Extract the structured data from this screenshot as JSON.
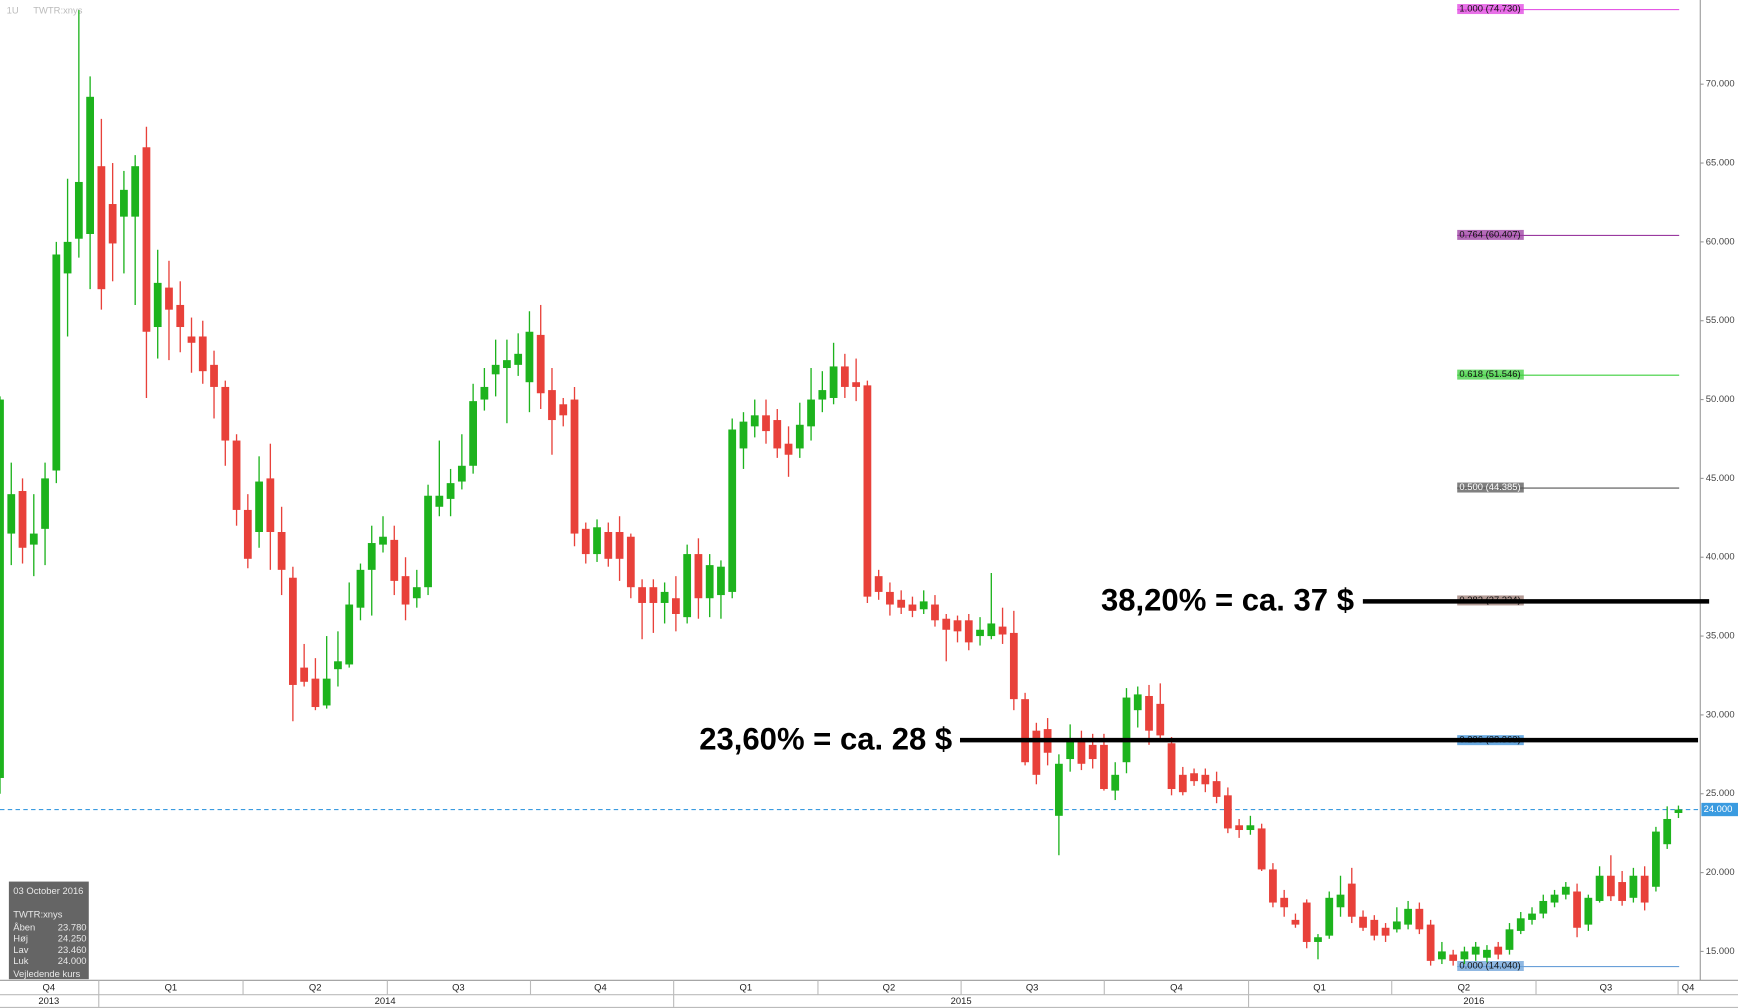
{
  "header": {
    "interval": "1U",
    "symbol": "TWTR:xnys"
  },
  "info_box": {
    "date": "03 October 2016",
    "symbol": "TWTR:xnys",
    "rows": [
      [
        "Åben",
        "23.780"
      ],
      [
        "Høj",
        "24.250"
      ],
      [
        "Lav",
        "23.460"
      ],
      [
        "Luk",
        "24.000"
      ]
    ],
    "note": "Vejledende kurs"
  },
  "chart_data": {
    "type": "candlestick",
    "up_color": "#1db31d",
    "down_color": "#e8413a",
    "open": [
      26,
      41.5,
      44.2,
      40.8,
      41.8,
      45.5,
      58,
      60.2,
      60.5,
      64.8,
      62.4,
      61.6,
      61.6,
      66,
      54.6,
      57.1,
      56,
      54,
      54,
      52.2,
      50.8,
      47.4,
      43,
      41.6,
      45,
      41.6,
      38.7,
      33,
      32.3,
      30.6,
      32.9,
      33.2,
      36.8,
      39.2,
      40.8,
      41.1,
      38.8,
      37.4,
      38.1,
      43.2,
      43.7,
      44.8,
      45.8,
      50,
      51.6,
      52,
      52.2,
      51.1,
      54.1,
      50.6,
      49.7,
      50,
      41.8,
      40.2,
      41.6,
      41.6,
      41.3,
      38.1,
      38.1,
      37.1,
      37.4,
      36.2,
      40.2,
      37.4,
      37.6,
      37.8,
      46.9,
      48.3,
      49,
      48.7,
      47.2,
      46.9,
      48.3,
      50,
      50.1,
      52.1,
      51.1,
      50.9,
      38.8,
      37.8,
      37.3,
      37,
      36.7,
      37,
      36.1,
      36,
      36,
      35,
      35,
      35.6,
      35.2,
      31,
      29,
      29.1,
      23.6,
      27.2,
      28.4,
      28.1,
      28.1,
      25.2,
      27,
      30.3,
      31.2,
      30.7,
      28.2,
      26.2,
      26.3,
      26.2,
      25.8,
      24.9,
      23,
      22.7,
      22.8,
      20.2,
      18.4,
      17,
      18.1,
      15.6,
      16,
      17.8,
      19.3,
      17.2,
      17,
      16.5,
      16.4,
      16.7,
      17.7,
      16.7,
      14.5,
      14.8,
      14.5,
      14.8,
      14.6,
      15.3,
      15.1,
      16.3,
      17,
      17.4,
      18.1,
      18.6,
      18.8,
      16.7,
      18.2,
      19.8,
      19.4,
      18.4,
      19.8,
      19.1,
      21.8,
      23.78
    ],
    "high": [
      50.2,
      46,
      45,
      44,
      46,
      60,
      64,
      74.7,
      70.5,
      67.8,
      65,
      64.5,
      65.5,
      67.3,
      59.5,
      58.8,
      57.5,
      55.2,
      55,
      53.1,
      51.2,
      47.8,
      44,
      46.4,
      47.2,
      43.2,
      39.4,
      34.5,
      33.6,
      35,
      35.3,
      38.4,
      39.6,
      42,
      42.6,
      42,
      40,
      39.2,
      44.6,
      47.4,
      45.6,
      47.8,
      51,
      52,
      53.8,
      53.8,
      54.2,
      55.6,
      56,
      52,
      50.1,
      50.8,
      42.2,
      42.4,
      42.2,
      42.6,
      41.5,
      38.6,
      38.6,
      38.4,
      38.8,
      40.8,
      41.2,
      40.2,
      39.8,
      48.8,
      49.2,
      50,
      50,
      49.4,
      48.3,
      49.8,
      52,
      51.8,
      53.6,
      52.9,
      52.6,
      51.2,
      39.2,
      38.4,
      37.9,
      37.5,
      37.9,
      37.6,
      36.4,
      36.3,
      36.4,
      36.2,
      39,
      36.8,
      36.6,
      31.4,
      29.5,
      29.8,
      27.5,
      29.4,
      29,
      28.8,
      28.8,
      27,
      31.7,
      31.8,
      31.9,
      32,
      28.6,
      26.7,
      26.6,
      26.6,
      26.4,
      25.4,
      23.4,
      23.6,
      23.1,
      20.6,
      18.9,
      17.4,
      18.3,
      16.1,
      18.8,
      19.8,
      20.3,
      17.6,
      17.3,
      16.8,
      17.8,
      18.2,
      18.1,
      17,
      15.6,
      15.1,
      15.3,
      15.6,
      15.4,
      15.6,
      16.8,
      17.5,
      17.8,
      18.6,
      18.9,
      19.4,
      19.3,
      18.6,
      20.4,
      21.1,
      20.1,
      20.3,
      20.4,
      22.9,
      24.2,
      24.25
    ],
    "low": [
      25,
      39.5,
      39.6,
      38.8,
      39.5,
      44.7,
      54,
      59,
      57,
      55.7,
      57.5,
      58,
      56,
      50.1,
      52.6,
      52.5,
      53,
      51.7,
      51,
      48.8,
      45.8,
      42,
      39.3,
      40.6,
      39.2,
      37.6,
      29.6,
      31.8,
      30.3,
      30.4,
      31.8,
      33,
      36,
      36.3,
      40.3,
      37.6,
      36,
      36.8,
      37.6,
      42.6,
      42.6,
      44.3,
      45.3,
      49.3,
      50.2,
      48.5,
      51.5,
      49.2,
      49.4,
      46.5,
      48.3,
      40.7,
      39.6,
      39.7,
      39.4,
      38.5,
      37.4,
      34.8,
      35.2,
      35.8,
      35.3,
      35.8,
      36.1,
      36.2,
      36.1,
      37.4,
      45.6,
      47.6,
      47.2,
      46.3,
      45.1,
      46.3,
      47.4,
      49.2,
      49.7,
      50.1,
      49.9,
      37.1,
      37.3,
      36.3,
      36.4,
      36.2,
      36.4,
      35.6,
      33.4,
      34.6,
      34.1,
      34.4,
      34.8,
      34.5,
      30.3,
      26.8,
      25.6,
      26.8,
      21.1,
      26.4,
      26.5,
      26.6,
      25.2,
      24.6,
      26.3,
      29.2,
      28.1,
      28.3,
      24.9,
      24.9,
      25.5,
      25.1,
      24.4,
      22.5,
      22.2,
      22.4,
      20.1,
      17.8,
      17.2,
      16.5,
      15.2,
      14.5,
      15.8,
      17.2,
      16.8,
      16.3,
      15.7,
      15.6,
      16.2,
      16.4,
      16.1,
      14.1,
      14.2,
      14.1,
      14.2,
      14.4,
      14.3,
      14.5,
      14.8,
      16.1,
      16.7,
      17.1,
      17.8,
      18.3,
      15.9,
      16.3,
      18.1,
      18.2,
      17.9,
      18.1,
      17.6,
      18.8,
      21.5,
      23.46
    ],
    "close": [
      50,
      44,
      40.6,
      41.5,
      45,
      59.2,
      60,
      63.8,
      69.2,
      57,
      59.9,
      63.3,
      64.8,
      54.3,
      57.4,
      55.7,
      54.6,
      53.6,
      51.8,
      50.8,
      47.4,
      43,
      39.9,
      44.8,
      41.6,
      39.2,
      31.9,
      32.1,
      30.5,
      32.3,
      33.4,
      37,
      39.2,
      40.9,
      41.3,
      38.5,
      37,
      38.1,
      43.9,
      43.9,
      44.7,
      45.8,
      49.9,
      50.8,
      52.2,
      52.5,
      52.9,
      54.3,
      50.4,
      48.7,
      49,
      41.5,
      40.2,
      41.9,
      39.9,
      39.9,
      38.1,
      37.1,
      37.1,
      37.8,
      36.4,
      40.2,
      37.4,
      39.5,
      39.4,
      48.1,
      48.6,
      49,
      48,
      46.9,
      46.5,
      48.4,
      50,
      50.6,
      52.1,
      50.8,
      50.8,
      37.5,
      37.8,
      37,
      36.8,
      36.6,
      37.2,
      36,
      35.4,
      35.3,
      34.6,
      35.4,
      35.8,
      35.1,
      31,
      27,
      26.2,
      27.6,
      26.9,
      28.4,
      26.9,
      27.2,
      25.3,
      26.2,
      31.1,
      31.3,
      29,
      28.7,
      25.3,
      25.1,
      25.8,
      25.6,
      24.8,
      22.8,
      22.7,
      23,
      20.2,
      18.1,
      17.8,
      16.7,
      15.6,
      15.9,
      18.4,
      18.6,
      17.2,
      16.5,
      16,
      16,
      16.9,
      17.7,
      16.4,
      14.4,
      15,
      14.4,
      15,
      15.3,
      15.1,
      14.8,
      16.4,
      17.1,
      17.4,
      18.2,
      18.6,
      19.1,
      16.5,
      18.4,
      19.8,
      18.5,
      18.2,
      19.8,
      18.1,
      22.6,
      23.4,
      24
    ],
    "ylim": [
      13.17,
      75.34
    ],
    "yticks": [
      {
        "value": 15,
        "label": "15.000"
      },
      {
        "value": 20,
        "label": "20.000"
      },
      {
        "value": 25,
        "label": "25.000"
      },
      {
        "value": 30,
        "label": "30.000"
      },
      {
        "value": 35,
        "label": "35.000"
      },
      {
        "value": 40,
        "label": "40.000"
      },
      {
        "value": 45,
        "label": "45.000"
      },
      {
        "value": 50,
        "label": "50.000"
      },
      {
        "value": 55,
        "label": "55.000"
      },
      {
        "value": 60,
        "label": "60.000"
      },
      {
        "value": 65,
        "label": "65.000"
      },
      {
        "value": 70,
        "label": "70.000"
      }
    ],
    "quarters": [
      "Q4",
      "Q1",
      "Q2",
      "Q3",
      "Q4",
      "Q1",
      "Q2",
      "Q3",
      "Q4",
      "Q1",
      "Q2",
      "Q3",
      "Q4"
    ],
    "years": [
      "2013",
      "2014",
      "2015",
      "2016"
    ],
    "current_price": {
      "value": 24,
      "label": "24.000",
      "color": "#3a9be0"
    },
    "fib_levels": [
      {
        "value": 74.73,
        "label": "1.000 (74.730)",
        "color": "#e040e0"
      },
      {
        "value": 60.407,
        "label": "0.764 (60.407)",
        "color": "#9a3aa0"
      },
      {
        "value": 51.546,
        "label": "0.618 (51.546)",
        "color": "#3ecf3e"
      },
      {
        "value": 44.385,
        "label": "0.500 (44.385)",
        "color": "#555555"
      },
      {
        "value": 37.224,
        "label": "0.382 (37.224)",
        "color": "#9a7a72"
      },
      {
        "value": 28.363,
        "label": "0.236 (28.363)",
        "color": "#3a8fd8"
      },
      {
        "value": 14.04,
        "label": "0.000 (14.040)",
        "color": "#6aa0d8"
      }
    ],
    "annotations": [
      {
        "text": "38,20% = ca. 37 $",
        "value": 37.2
      },
      {
        "text": "23,60% = ca. 28 $",
        "value": 28.4
      }
    ]
  }
}
